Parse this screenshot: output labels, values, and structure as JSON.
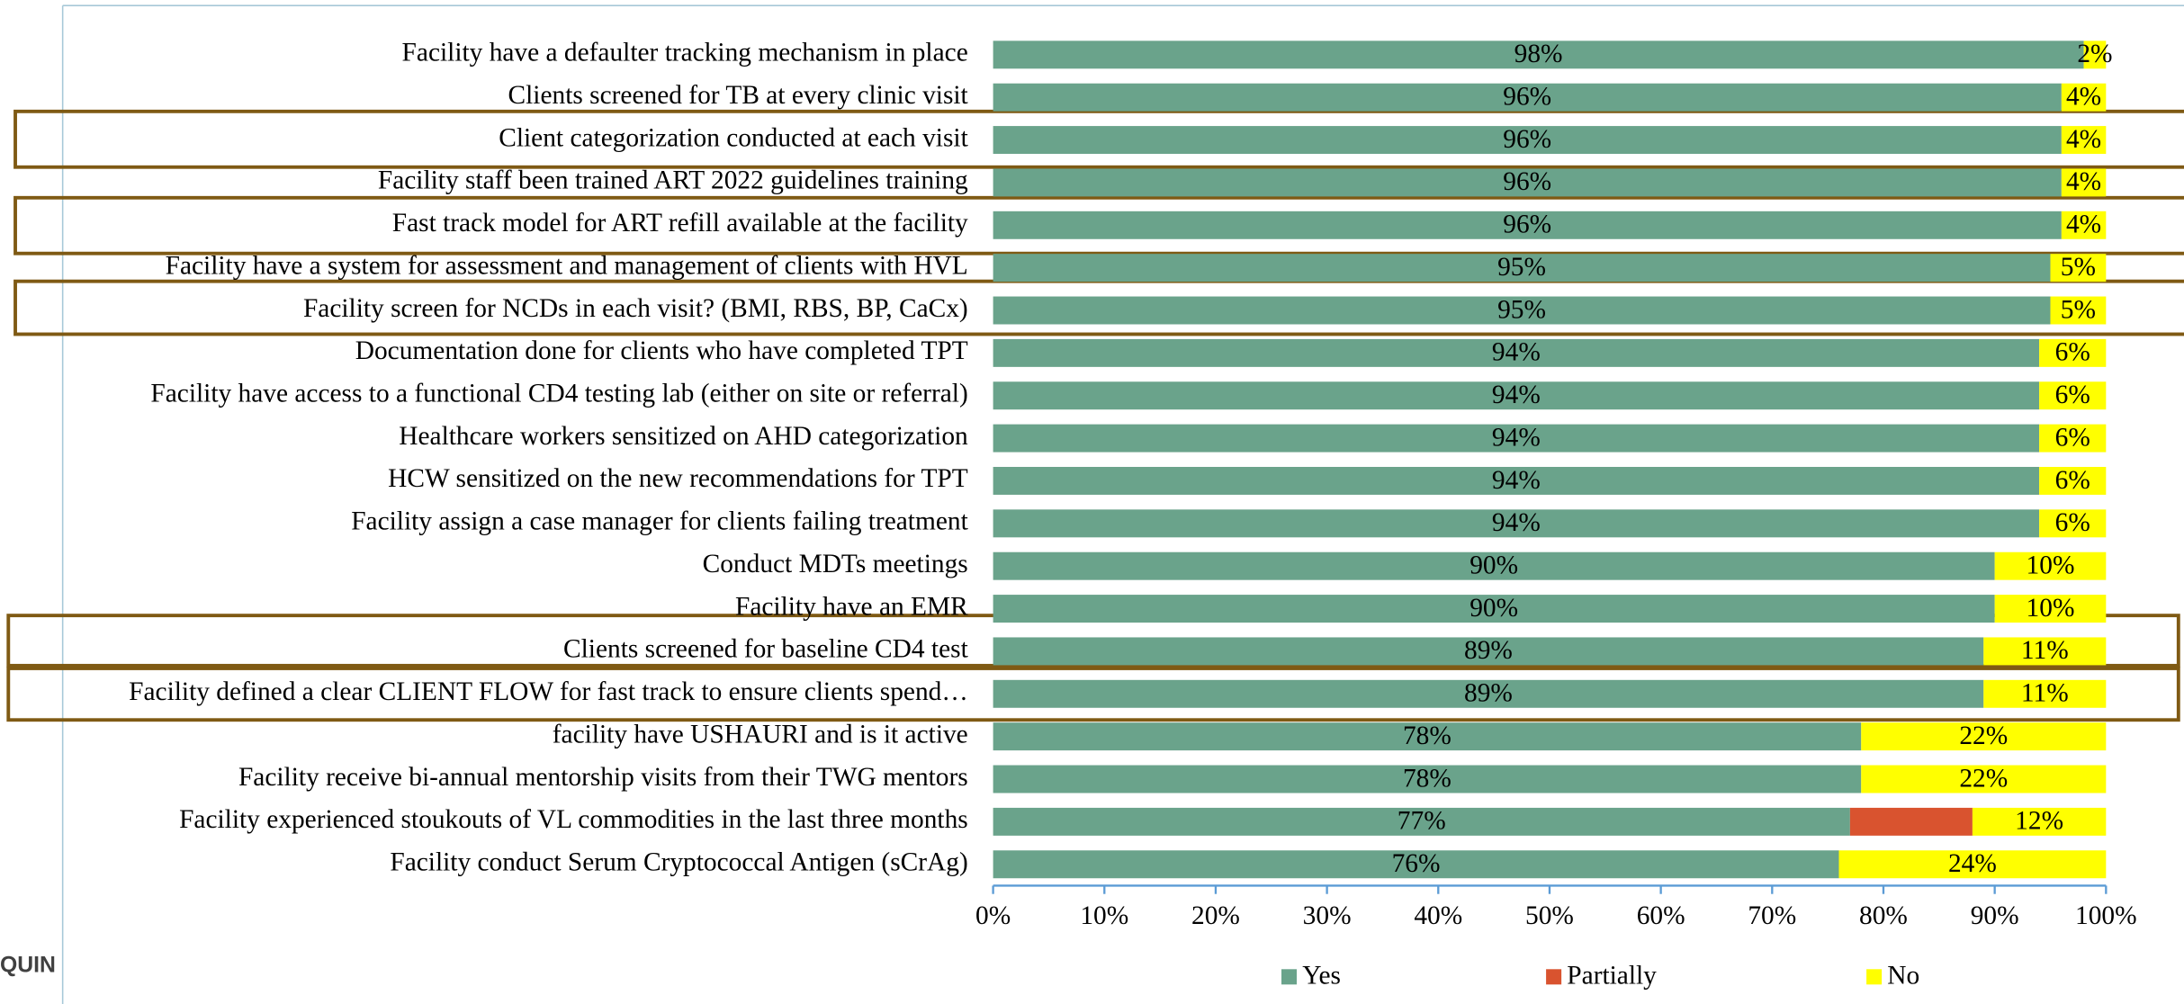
{
  "chart_data": {
    "type": "stacked-bar-horizontal",
    "categories": [
      "Facility have a defaulter tracking mechanism in place",
      "Clients screened for TB at every clinic visit",
      "Client categorization conducted at each visit",
      "Facility staff been trained ART 2022 guidelines training",
      "Fast track model for ART refill available at the facility",
      "Facility have a system for assessment and management of clients with HVL",
      "Facility screen for NCDs in each visit? (BMI, RBS, BP, CaCx)",
      "Documentation done for clients who have completed TPT",
      "Facility have access to a functional CD4 testing lab (either on site or referral)",
      "Healthcare workers sensitized on AHD categorization",
      "HCW sensitized on the new recommendations for TPT",
      "Facility assign a case manager for clients failing treatment",
      "Conduct MDTs meetings",
      "Facility have an EMR",
      "Clients screened for baseline CD4 test",
      "Facility defined a clear CLIENT FLOW for fast track to ensure clients spend…",
      "facility have USHAURI and is it active",
      "Facility receive bi-annual mentorship visits from their TWG mentors",
      "Facility experienced stoukouts  of VL commodities in the last three months",
      "Facility conduct Serum Cryptococcal Antigen (sCrAg)"
    ],
    "series": [
      {
        "name": "Yes",
        "color": "#6aa38b",
        "values": [
          98,
          96,
          96,
          96,
          96,
          95,
          95,
          94,
          94,
          94,
          94,
          94,
          90,
          90,
          89,
          89,
          78,
          78,
          77,
          76
        ],
        "value_labels": [
          "98%",
          "96%",
          "96%",
          "96%",
          "96%",
          "95%",
          "95%",
          "94%",
          "94%",
          "94%",
          "94%",
          "94%",
          "90%",
          "90%",
          "89%",
          "89%",
          "78%",
          "78%",
          "77%",
          "76%"
        ]
      },
      {
        "name": "Partially",
        "color": "#d9532f",
        "values": [
          0,
          0,
          0,
          0,
          0,
          0,
          0,
          0,
          0,
          0,
          0,
          0,
          0,
          0,
          0,
          0,
          0,
          0,
          11,
          0
        ]
      },
      {
        "name": "No",
        "color": "#ffff00",
        "values": [
          2,
          4,
          4,
          4,
          4,
          5,
          5,
          6,
          6,
          6,
          6,
          6,
          10,
          10,
          11,
          11,
          22,
          22,
          12,
          24
        ],
        "value_labels": [
          "2%",
          "4%",
          "4%",
          "4%",
          "4%",
          "5%",
          "5%",
          "6%",
          "6%",
          "6%",
          "6%",
          "6%",
          "10%",
          "10%",
          "11%",
          "11%",
          "22%",
          "22%",
          "12%",
          "24%"
        ]
      }
    ],
    "xlim": [
      0,
      100
    ],
    "xticks": [
      {
        "value": 0,
        "label": "0%"
      },
      {
        "value": 10,
        "label": "10%"
      },
      {
        "value": 20,
        "label": "20%"
      },
      {
        "value": 30,
        "label": "30%"
      },
      {
        "value": 40,
        "label": "40%"
      },
      {
        "value": 50,
        "label": "50%"
      },
      {
        "value": 60,
        "label": "60%"
      },
      {
        "value": 70,
        "label": "70%"
      },
      {
        "value": 80,
        "label": "80%"
      },
      {
        "value": 90,
        "label": "90%"
      },
      {
        "value": 100,
        "label": "100%"
      }
    ],
    "legend": "bottom",
    "background_text": "QUIN"
  }
}
